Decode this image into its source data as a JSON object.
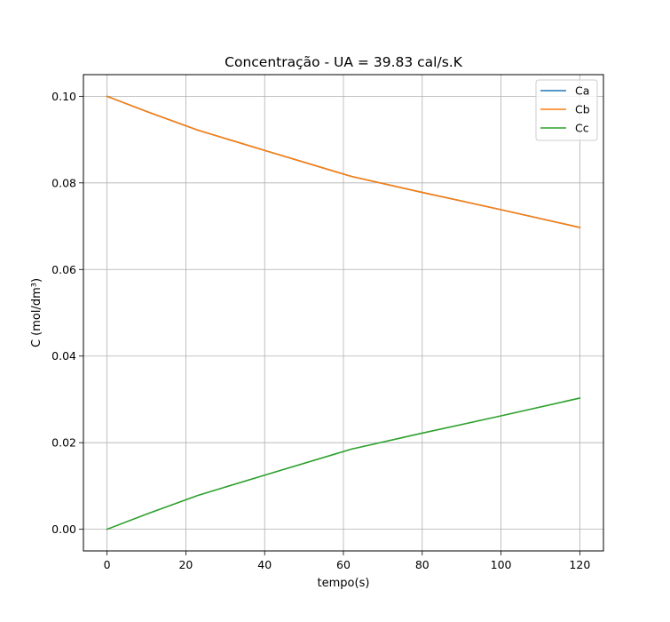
{
  "chart_data": {
    "type": "line",
    "title": "Concentração - UA = 39.83 cal/s.K",
    "xlabel": "tempo(s)",
    "ylabel": "C (mol/dm³)",
    "xlim": [
      -6,
      126
    ],
    "ylim": [
      -0.005,
      0.105
    ],
    "xticks": [
      0,
      20,
      40,
      60,
      80,
      100,
      120
    ],
    "xtick_labels": [
      "0",
      "20",
      "40",
      "60",
      "80",
      "100",
      "120"
    ],
    "yticks": [
      0.0,
      0.02,
      0.04,
      0.06,
      0.08,
      0.1
    ],
    "ytick_labels": [
      "0.00",
      "0.02",
      "0.04",
      "0.06",
      "0.08",
      "0.10"
    ],
    "grid": true,
    "legend_position": "upper right",
    "series": [
      {
        "name": "Ca",
        "color": "#1f77b4",
        "x": [
          0,
          10,
          23,
          40,
          62,
          80,
          100,
          120
        ],
        "y": [
          0.1,
          0.0965,
          0.0922,
          0.0875,
          0.0815,
          0.0778,
          0.0738,
          0.0697
        ]
      },
      {
        "name": "Cb",
        "color": "#ff7f0e",
        "x": [
          0,
          10,
          23,
          40,
          62,
          80,
          100,
          120
        ],
        "y": [
          0.1,
          0.0965,
          0.0922,
          0.0875,
          0.0815,
          0.0778,
          0.0738,
          0.0697
        ]
      },
      {
        "name": "Cc",
        "color": "#2ca02c",
        "x": [
          0,
          10,
          23,
          40,
          62,
          80,
          100,
          120
        ],
        "y": [
          0.0,
          0.0035,
          0.0078,
          0.0125,
          0.0185,
          0.0222,
          0.0262,
          0.0303
        ]
      }
    ]
  }
}
